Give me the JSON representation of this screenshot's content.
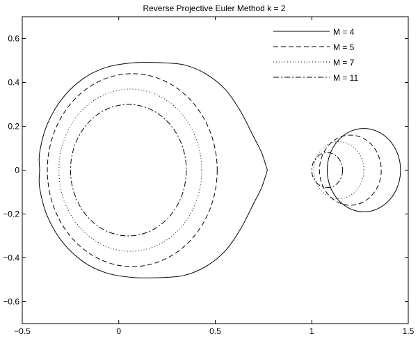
{
  "chart_data": {
    "type": "line",
    "title": "Reverse Projective Euler Method  k = 2",
    "xlabel": "",
    "ylabel": "",
    "xlim": [
      -0.5,
      1.5
    ],
    "ylim": [
      -0.7,
      0.7
    ],
    "x_ticks": [
      -0.5,
      0,
      0.5,
      1,
      1.5
    ],
    "x_tick_labels": [
      "−0.5",
      "0",
      "0.5",
      "1",
      "1.5"
    ],
    "y_ticks": [
      -0.6,
      -0.4,
      -0.2,
      0,
      0.2,
      0.4,
      0.6
    ],
    "y_tick_labels": [
      "−0.6",
      "−0.4",
      "−0.2",
      "0",
      "0.2",
      "0.4",
      "0.6"
    ],
    "grid": false,
    "legend_position": "top-right",
    "series": [
      {
        "name": "M = 4",
        "line_style": "solid",
        "left_curve": {
          "points": [
            [
              0.77,
              0.0
            ],
            [
              0.74,
              0.08
            ],
            [
              0.7,
              0.15
            ],
            [
              0.63,
              0.27
            ],
            [
              0.55,
              0.37
            ],
            [
              0.45,
              0.44
            ],
            [
              0.34,
              0.48
            ],
            [
              0.22,
              0.49
            ],
            [
              0.08,
              0.49
            ],
            [
              -0.06,
              0.47
            ],
            [
              -0.18,
              0.42
            ],
            [
              -0.29,
              0.33
            ],
            [
              -0.37,
              0.21
            ],
            [
              -0.41,
              0.08
            ],
            [
              -0.41,
              0.0
            ],
            [
              -0.41,
              -0.08
            ],
            [
              -0.37,
              -0.21
            ],
            [
              -0.29,
              -0.33
            ],
            [
              -0.18,
              -0.42
            ],
            [
              -0.06,
              -0.47
            ],
            [
              0.08,
              -0.49
            ],
            [
              0.22,
              -0.49
            ],
            [
              0.34,
              -0.48
            ],
            [
              0.45,
              -0.44
            ],
            [
              0.55,
              -0.37
            ],
            [
              0.63,
              -0.27
            ],
            [
              0.7,
              -0.15
            ],
            [
              0.74,
              -0.08
            ],
            [
              0.77,
              0.0
            ]
          ]
        },
        "right_circle": {
          "center": [
            1.27,
            0.0
          ],
          "radius": 0.19
        }
      },
      {
        "name": "M = 5",
        "line_style": "dashed",
        "left_circle": {
          "center": [
            0.07,
            0.0
          ],
          "radius": 0.44
        },
        "right_circle": {
          "center": [
            1.2,
            0.0
          ],
          "radius": 0.16
        }
      },
      {
        "name": "M = 7",
        "line_style": "dotted",
        "left_circle": {
          "center": [
            0.06,
            0.0
          ],
          "radius": 0.37
        },
        "right_circle": {
          "center": [
            1.14,
            0.0
          ],
          "radius": 0.13
        }
      },
      {
        "name": "M = 11",
        "line_style": "dashdot",
        "left_circle": {
          "center": [
            0.05,
            0.0
          ],
          "radius": 0.3
        },
        "right_circle": {
          "center": [
            1.08,
            0.0
          ],
          "radius": 0.08
        }
      }
    ]
  }
}
